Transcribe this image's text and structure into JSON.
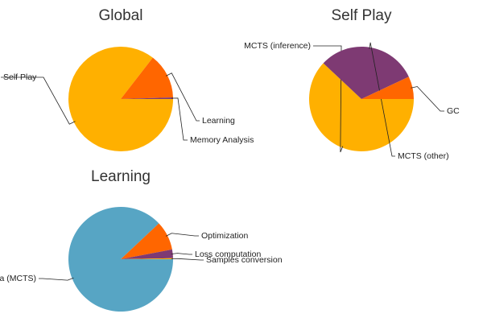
{
  "chart_data": [
    {
      "type": "pie",
      "title": "Global",
      "slices": [
        {
          "label": "Self Play",
          "value": 85.5,
          "color": "#FFB000"
        },
        {
          "label": "Learning",
          "value": 14.0,
          "color": "#FF6600"
        },
        {
          "label": "Memory Analysis",
          "value": 0.5,
          "color": "#7E3A73"
        }
      ]
    },
    {
      "type": "pie",
      "title": "Self Play",
      "slices": [
        {
          "label": "MCTS (inference)",
          "value": 62.0,
          "color": "#FFB000"
        },
        {
          "label": "MCTS (other)",
          "value": 31.0,
          "color": "#7E3A73"
        },
        {
          "label": "GC",
          "value": 7.0,
          "color": "#FF6600"
        }
      ]
    },
    {
      "type": "pie",
      "title": "Learning",
      "slices": [
        {
          "label": "Data (MCTS)",
          "value": 88.0,
          "color": "#57A5C4"
        },
        {
          "label": "Optimization",
          "value": 9.0,
          "color": "#FF6600"
        },
        {
          "label": "Loss computation",
          "value": 2.7,
          "color": "#7E3A73"
        },
        {
          "label": "Samples conversion",
          "value": 0.3,
          "color": "#FFB000"
        }
      ]
    }
  ]
}
